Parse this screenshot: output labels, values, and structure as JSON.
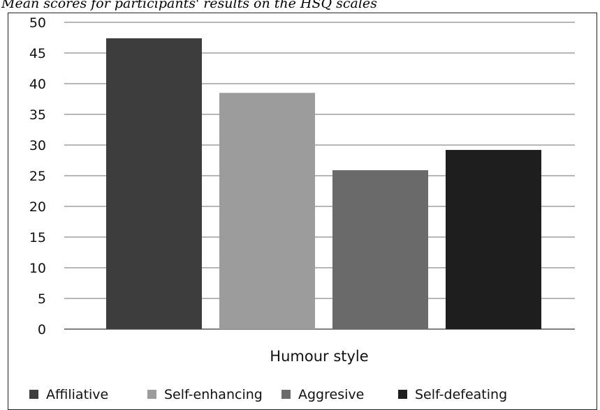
{
  "caption": "Mean scores for participants' results on the HSQ scales",
  "chart_data": {
    "type": "bar",
    "title": "",
    "xlabel": "Humour style",
    "ylabel": "",
    "ylim": [
      0,
      50
    ],
    "yticks": [
      0,
      5,
      10,
      15,
      20,
      25,
      30,
      35,
      40,
      45,
      50
    ],
    "grid": true,
    "legend_position": "bottom",
    "series": [
      {
        "name": "Affiliative",
        "value": 47.4,
        "color": "#3d3d3d"
      },
      {
        "name": "Self-enhancing",
        "value": 38.5,
        "color": "#9c9c9c"
      },
      {
        "name": "Aggresive",
        "value": 25.9,
        "color": "#6a6a6a"
      },
      {
        "name": "Self-defeating",
        "value": 29.2,
        "color": "#1e1e1e"
      }
    ]
  }
}
